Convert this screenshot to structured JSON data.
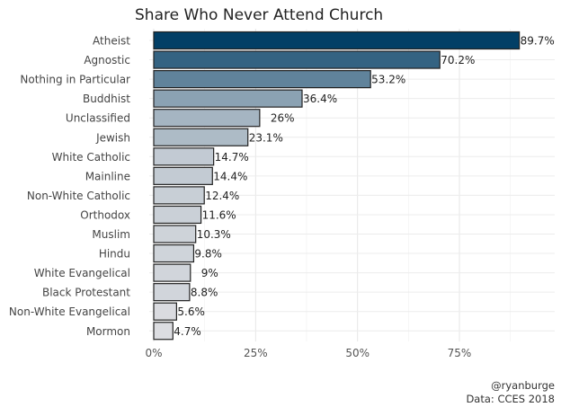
{
  "chart_data": {
    "type": "bar",
    "orientation": "horizontal",
    "title": "Share Who Never Attend Church",
    "xlabel": "",
    "ylabel": "",
    "xlim": [
      0,
      100
    ],
    "x_ticks": [
      0,
      25,
      50,
      75
    ],
    "x_tick_labels": [
      "0%",
      "25%",
      "50%",
      "75%"
    ],
    "grid": true,
    "categories": [
      "Atheist",
      "Agnostic",
      "Nothing in Particular",
      "Buddhist",
      "Unclassified",
      "Jewish",
      "White Catholic",
      "Mainline",
      "Non-White Catholic",
      "Orthodox",
      "Muslim",
      "Hindu",
      "White Evangelical",
      "Black Protestant",
      "Non-White Evangelical",
      "Mormon"
    ],
    "values": [
      89.7,
      70.2,
      53.2,
      36.4,
      26,
      23.1,
      14.7,
      14.4,
      12.4,
      11.6,
      10.3,
      9.8,
      9,
      8.8,
      5.6,
      4.7
    ],
    "data_labels": [
      "89.7%",
      "70.2%",
      "53.2%",
      "36.4%",
      "26%",
      "23.1%",
      "14.7%",
      "14.4%",
      "12.4%",
      "11.6%",
      "10.3%",
      "9.8%",
      "9%",
      "8.8%",
      "5.6%",
      "4.7%"
    ],
    "color_low": "#dcdde1",
    "color_high": "#023f66",
    "caption": [
      "@ryanburge",
      "Data: CCES 2018"
    ]
  }
}
